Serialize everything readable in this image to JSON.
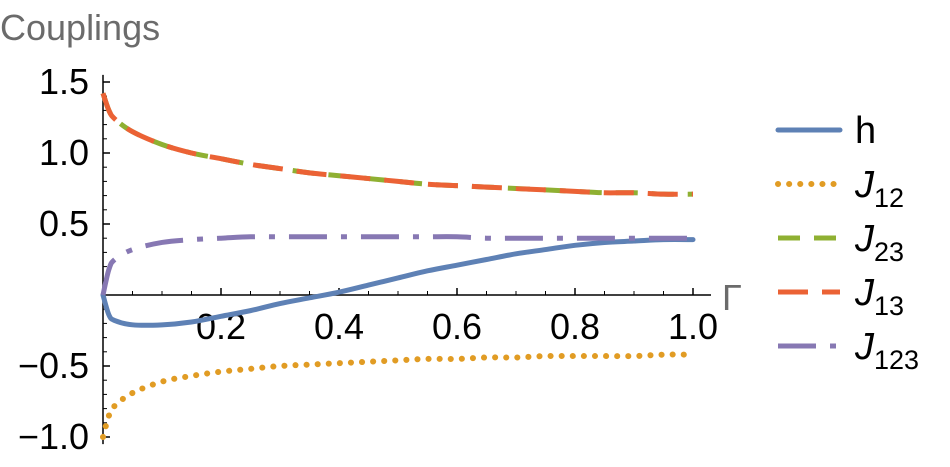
{
  "chart_data": {
    "type": "line",
    "title": "",
    "ylabel": "Couplings",
    "xlabel": "Γ",
    "xlim": [
      0,
      1.0
    ],
    "ylim": [
      -1.05,
      1.55
    ],
    "xticks": [
      0.2,
      0.4,
      0.6,
      0.8,
      1.0
    ],
    "xtick_labels": [
      "0.2",
      "0.4",
      "0.6",
      "0.8",
      "1.0"
    ],
    "yticks": [
      -1.0,
      -0.5,
      0.5,
      1.0,
      1.5
    ],
    "ytick_labels": [
      "−1.0",
      "−0.5",
      "0.5",
      "1.0",
      "1.5"
    ],
    "grid": false,
    "legend_position": "right",
    "x": [
      0,
      0.01,
      0.02,
      0.05,
      0.1,
      0.15,
      0.2,
      0.25,
      0.3,
      0.35,
      0.4,
      0.45,
      0.5,
      0.55,
      0.6,
      0.65,
      0.7,
      0.75,
      0.8,
      0.85,
      0.9,
      0.95,
      1.0
    ],
    "series": [
      {
        "name": "h",
        "base": "h",
        "sub": "",
        "italic": false,
        "color": "#5e81b5",
        "dash": "solid",
        "values": [
          0,
          -0.14,
          -0.18,
          -0.21,
          -0.21,
          -0.19,
          -0.15,
          -0.11,
          -0.06,
          -0.02,
          0.02,
          0.07,
          0.12,
          0.17,
          0.21,
          0.25,
          0.29,
          0.32,
          0.35,
          0.37,
          0.38,
          0.39,
          0.39
        ]
      },
      {
        "name": "J12",
        "base": "J",
        "sub": "12",
        "italic": true,
        "color": "#e19c24",
        "dash": "dotted",
        "values": [
          -1.0,
          -0.85,
          -0.78,
          -0.69,
          -0.61,
          -0.57,
          -0.54,
          -0.52,
          -0.5,
          -0.49,
          -0.48,
          -0.47,
          -0.46,
          -0.45,
          -0.45,
          -0.44,
          -0.44,
          -0.43,
          -0.43,
          -0.43,
          -0.43,
          -0.42,
          -0.42
        ]
      },
      {
        "name": "J23",
        "base": "J",
        "sub": "23",
        "italic": true,
        "color": "#8fb032",
        "dash": "dashed",
        "values": [
          1.42,
          1.3,
          1.24,
          1.15,
          1.06,
          1.0,
          0.96,
          0.92,
          0.89,
          0.86,
          0.84,
          0.82,
          0.8,
          0.78,
          0.77,
          0.76,
          0.75,
          0.74,
          0.73,
          0.72,
          0.72,
          0.71,
          0.71
        ]
      },
      {
        "name": "J13",
        "base": "J",
        "sub": "13",
        "italic": true,
        "color": "#eb6235",
        "dash": "longdash",
        "values": [
          1.42,
          1.3,
          1.24,
          1.15,
          1.06,
          1.0,
          0.96,
          0.92,
          0.89,
          0.86,
          0.84,
          0.82,
          0.8,
          0.78,
          0.77,
          0.76,
          0.75,
          0.74,
          0.73,
          0.72,
          0.72,
          0.71,
          0.71
        ]
      },
      {
        "name": "J123",
        "base": "J",
        "sub": "123",
        "italic": true,
        "color": "#8778b3",
        "dash": "dashdot",
        "values": [
          0,
          0.18,
          0.25,
          0.32,
          0.37,
          0.39,
          0.4,
          0.41,
          0.41,
          0.41,
          0.41,
          0.41,
          0.41,
          0.41,
          0.41,
          0.4,
          0.4,
          0.4,
          0.4,
          0.4,
          0.4,
          0.4,
          0.4
        ]
      }
    ]
  }
}
